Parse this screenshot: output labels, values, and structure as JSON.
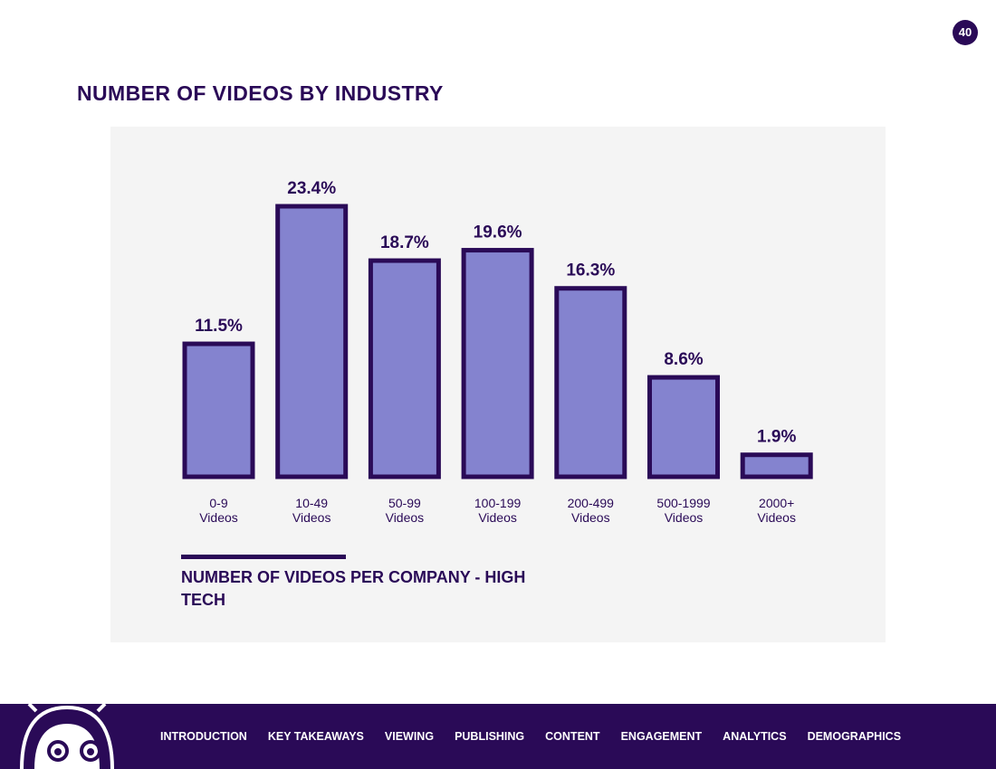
{
  "page_number": "40",
  "page_title": "NUMBER OF VIDEOS BY INDUSTRY",
  "caption": "NUMBER OF VIDEOS PER COMPANY - HIGH TECH",
  "colors": {
    "dark_purple": "#2a0a57",
    "bar_fill": "#8483cf",
    "panel_bg": "#f4f4f4"
  },
  "chart_data": {
    "type": "bar",
    "title": "NUMBER OF VIDEOS PER COMPANY - HIGH TECH",
    "categories": [
      [
        "0-9",
        "Videos"
      ],
      [
        "10-49",
        "Videos"
      ],
      [
        "50-99",
        "Videos"
      ],
      [
        "100-199",
        "Videos"
      ],
      [
        "200-499",
        "Videos"
      ],
      [
        "500-1999",
        "Videos"
      ],
      [
        "2000+",
        "Videos"
      ]
    ],
    "values": [
      11.5,
      23.4,
      18.7,
      19.6,
      16.3,
      8.6,
      1.9
    ],
    "value_labels": [
      "11.5%",
      "23.4%",
      "18.7%",
      "19.6%",
      "16.3%",
      "8.6%",
      "1.9%"
    ],
    "xlabel": "",
    "ylabel": "",
    "ylim": [
      0,
      23.4
    ],
    "grid": false
  },
  "footer": {
    "mascot_icon": "robot-mascot-icon",
    "nav": [
      "INTRODUCTION",
      "KEY TAKEAWAYS",
      "VIEWING",
      "PUBLISHING",
      "CONTENT",
      "ENGAGEMENT",
      "ANALYTICS",
      "DEMOGRAPHICS"
    ]
  }
}
